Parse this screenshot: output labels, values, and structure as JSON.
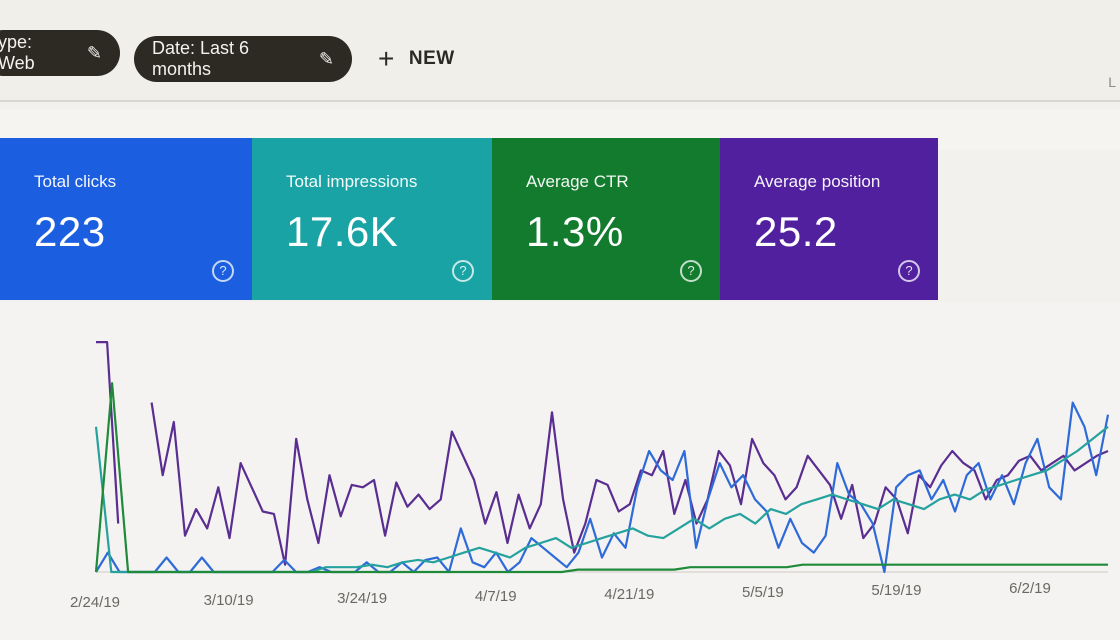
{
  "filters": {
    "type_chip": "ype: Web",
    "date_chip": "Date: Last 6 months",
    "new_label": "NEW",
    "corner_text": "L"
  },
  "metrics": [
    {
      "label": "Total clicks",
      "value": "223",
      "color": "#1b5fe0"
    },
    {
      "label": "Total impressions",
      "value": "17.6K",
      "color": "#19a3a4"
    },
    {
      "label": "Average CTR",
      "value": "1.3%",
      "color": "#137b2e"
    },
    {
      "label": "Average position",
      "value": "25.2",
      "color": "#51209f"
    }
  ],
  "chart_data": {
    "type": "line",
    "title": "",
    "xlabel": "",
    "ylabel": "",
    "x_ticks": [
      "2/24/19",
      "3/10/19",
      "3/24/19",
      "4/7/19",
      "4/21/19",
      "5/5/19",
      "5/19/19",
      "6/2/19"
    ],
    "grid": false,
    "legend": "none",
    "series": [
      {
        "color": "#5a2d91",
        "values": [
          95,
          95,
          20,
          null,
          null,
          70,
          40,
          62,
          15,
          26,
          18,
          35,
          14,
          45,
          35,
          25,
          24,
          3,
          55,
          30,
          12,
          40,
          23,
          36,
          35,
          38,
          15,
          37,
          27,
          32,
          26,
          30,
          58,
          48,
          38,
          20,
          33,
          12,
          32,
          18,
          28,
          66,
          30,
          8,
          20,
          38,
          36,
          25,
          28,
          42,
          40,
          50,
          24,
          38,
          20,
          30,
          50,
          44,
          28,
          55,
          45,
          40,
          30,
          35,
          48,
          42,
          36,
          22,
          36,
          14,
          20,
          35,
          30,
          16,
          40,
          35,
          44,
          50,
          45,
          42,
          30,
          38,
          40,
          46,
          48,
          42,
          45,
          48,
          42,
          45,
          48,
          50
        ]
      },
      {
        "color": "#2e6bd8",
        "values": [
          0,
          8,
          0,
          0,
          0,
          0,
          6,
          0,
          0,
          6,
          0,
          0,
          0,
          0,
          0,
          0,
          5,
          0,
          0,
          2,
          0,
          0,
          0,
          4,
          0,
          0,
          4,
          0,
          5,
          6,
          0,
          18,
          4,
          2,
          8,
          0,
          4,
          14,
          10,
          6,
          2,
          8,
          22,
          6,
          16,
          10,
          35,
          50,
          42,
          38,
          50,
          10,
          30,
          45,
          35,
          40,
          30,
          25,
          10,
          22,
          12,
          8,
          15,
          45,
          32,
          28,
          20,
          0,
          35,
          40,
          42,
          30,
          38,
          25,
          40,
          45,
          30,
          40,
          28,
          45,
          55,
          35,
          30,
          70,
          60,
          40,
          65
        ]
      },
      {
        "color": "#25a29d",
        "values": [
          60,
          0,
          0,
          0,
          0,
          0,
          0,
          0,
          0,
          0,
          0,
          0,
          0,
          0,
          0,
          2,
          2,
          2,
          3,
          2,
          4,
          5,
          4,
          6,
          8,
          10,
          8,
          6,
          10,
          12,
          14,
          10,
          12,
          14,
          16,
          18,
          15,
          14,
          18,
          22,
          18,
          22,
          24,
          20,
          26,
          24,
          28,
          30,
          32,
          30,
          28,
          26,
          30,
          28,
          26,
          30,
          32,
          30,
          34,
          36,
          38,
          40,
          42,
          46,
          50,
          55,
          60
        ]
      },
      {
        "color": "#1f8a3a",
        "values": [
          0,
          78,
          0,
          0,
          0,
          0,
          0,
          0,
          0,
          0,
          0,
          0,
          0,
          0,
          0,
          0,
          0,
          0,
          0,
          0,
          0,
          0,
          0,
          0,
          0,
          0,
          0,
          0,
          0,
          0,
          1,
          1,
          1,
          1,
          1,
          1,
          1,
          2,
          2,
          2,
          2,
          2,
          2,
          2,
          3,
          3,
          3,
          3,
          3,
          3,
          3,
          3,
          3,
          3,
          3,
          3,
          3,
          3,
          3,
          3,
          3,
          3,
          3,
          3
        ]
      }
    ]
  }
}
